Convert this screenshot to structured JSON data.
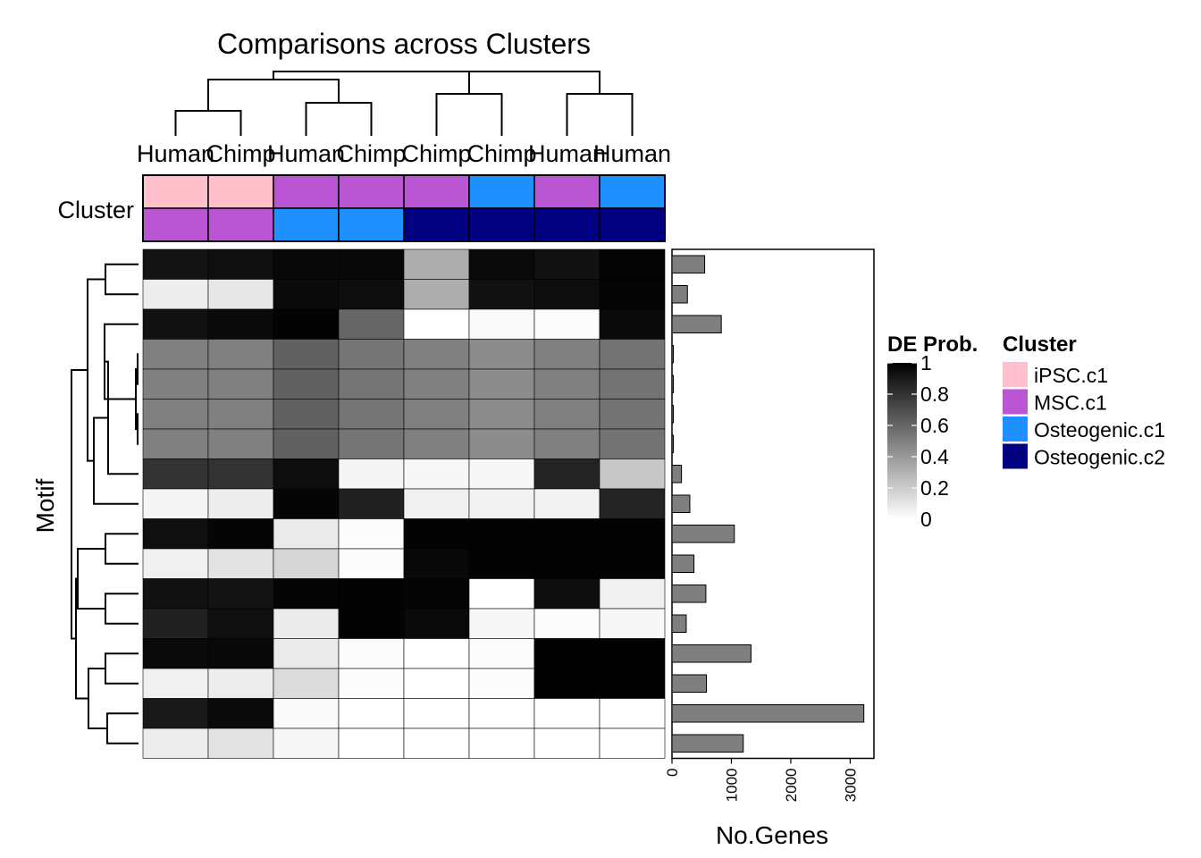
{
  "chart_data": {
    "type": "heatmap",
    "title": "Comparisons across Clusters",
    "columns": [
      "Human",
      "Chimp",
      "Human",
      "Chimp",
      "Chimp",
      "Chimp",
      "Human",
      "Human"
    ],
    "cluster_row_label": "Cluster",
    "cluster_annotation": {
      "top": [
        "iPSC.c1",
        "iPSC.c1",
        "MSC.c1",
        "MSC.c1",
        "MSC.c1",
        "Osteogenic.c1",
        "MSC.c1",
        "Osteogenic.c1"
      ],
      "bottom": [
        "MSC.c1",
        "MSC.c1",
        "Osteogenic.c1",
        "Osteogenic.c1",
        "Osteogenic.c2",
        "Osteogenic.c2",
        "Osteogenic.c2",
        "Osteogenic.c2"
      ]
    },
    "ylabel": "Motif",
    "values": [
      [
        0.92,
        0.94,
        0.97,
        0.97,
        0.32,
        0.96,
        0.93,
        0.98
      ],
      [
        0.07,
        0.09,
        0.96,
        0.95,
        0.32,
        0.93,
        0.95,
        0.98
      ],
      [
        0.93,
        0.96,
        0.99,
        0.6,
        0.0,
        0.02,
        0.01,
        0.96
      ],
      [
        0.5,
        0.5,
        0.62,
        0.54,
        0.5,
        0.45,
        0.5,
        0.55
      ],
      [
        0.5,
        0.5,
        0.62,
        0.54,
        0.5,
        0.45,
        0.5,
        0.55
      ],
      [
        0.5,
        0.5,
        0.62,
        0.54,
        0.5,
        0.45,
        0.5,
        0.55
      ],
      [
        0.5,
        0.5,
        0.62,
        0.54,
        0.5,
        0.45,
        0.5,
        0.55
      ],
      [
        0.8,
        0.8,
        0.95,
        0.04,
        0.03,
        0.03,
        0.86,
        0.22
      ],
      [
        0.04,
        0.07,
        0.98,
        0.87,
        0.06,
        0.05,
        0.05,
        0.86
      ],
      [
        0.94,
        0.98,
        0.08,
        0.01,
        0.99,
        0.99,
        0.99,
        0.99
      ],
      [
        0.06,
        0.11,
        0.16,
        0.01,
        0.97,
        0.99,
        0.99,
        0.99
      ],
      [
        0.93,
        0.92,
        0.98,
        0.99,
        0.98,
        0.0,
        0.95,
        0.06
      ],
      [
        0.87,
        0.94,
        0.08,
        0.99,
        0.96,
        0.03,
        0.01,
        0.03
      ],
      [
        0.96,
        0.97,
        0.08,
        0.01,
        0.0,
        0.01,
        1.0,
        1.0
      ],
      [
        0.06,
        0.07,
        0.14,
        0.01,
        0.0,
        0.01,
        1.0,
        1.0
      ],
      [
        0.9,
        0.96,
        0.02,
        0.0,
        0.0,
        0.0,
        0.0,
        0.0
      ],
      [
        0.07,
        0.11,
        0.03,
        0.0,
        0.0,
        0.0,
        0.0,
        0.0
      ]
    ],
    "bar": {
      "xlabel": "No.Genes",
      "values": [
        550,
        260,
        830,
        5,
        5,
        5,
        5,
        160,
        300,
        1050,
        370,
        570,
        240,
        1330,
        580,
        3230,
        1200
      ],
      "xlim": [
        0,
        3400
      ],
      "ticks": [
        "0",
        "1000",
        "2000",
        "3000"
      ]
    },
    "colorbar": {
      "title": "DE Prob.",
      "ticks": [
        "1",
        "0.8",
        "0.6",
        "0.4",
        "0.2",
        "0"
      ],
      "range": [
        0,
        1
      ]
    },
    "legend": {
      "title": "Cluster",
      "items": [
        {
          "label": "iPSC.c1",
          "color": "#FFC0CB"
        },
        {
          "label": "MSC.c1",
          "color": "#BA55D3"
        },
        {
          "label": "Osteogenic.c1",
          "color": "#1E90FF"
        },
        {
          "label": "Osteogenic.c2",
          "color": "#000080"
        }
      ]
    }
  }
}
